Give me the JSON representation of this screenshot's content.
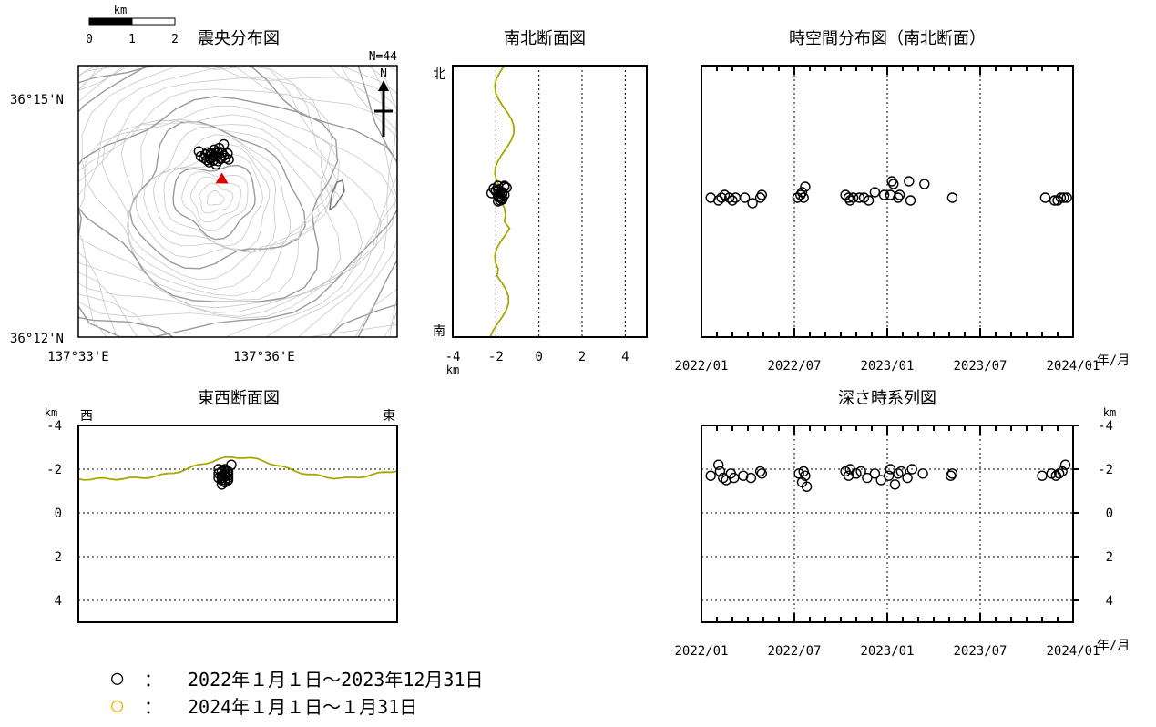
{
  "chart_data": [
    {
      "type": "scatter",
      "panel": "epicenter-map",
      "title": "震央分布図",
      "count_label": "N=44",
      "north_label": "N",
      "scale_bar": {
        "unit": "km",
        "ticks": [
          "0",
          "1",
          "2"
        ]
      },
      "lat_ticks": [
        "36°15'N",
        "36°12'N"
      ],
      "lon_ticks": [
        "137°33'E",
        "137°36'E"
      ],
      "xlim_deg_lon": [
        137.55,
        137.6333
      ],
      "ylim_deg_lat": [
        36.2,
        36.25
      ],
      "volcano_marker": {
        "lon": 137.5875,
        "lat": 36.2293,
        "color": "#e00000"
      },
      "points_lonlat": [
        [
          137.5815,
          36.2342
        ],
        [
          137.5832,
          36.2336
        ],
        [
          137.585,
          36.2331
        ],
        [
          137.586,
          36.2338
        ],
        [
          137.587,
          36.233
        ],
        [
          137.588,
          36.2334
        ],
        [
          137.5845,
          36.2328
        ],
        [
          137.5838,
          36.234
        ],
        [
          137.5865,
          36.2324
        ],
        [
          137.5855,
          36.2345
        ],
        [
          137.5875,
          36.234
        ],
        [
          137.5828,
          36.233
        ],
        [
          137.5842,
          36.2322
        ],
        [
          137.5868,
          36.2348
        ],
        [
          137.589,
          36.2338
        ],
        [
          137.588,
          36.2355
        ],
        [
          137.586,
          36.2318
        ],
        [
          137.5848,
          36.2336
        ],
        [
          137.5872,
          36.2328
        ],
        [
          137.5836,
          36.2326
        ],
        [
          137.5858,
          36.2333
        ],
        [
          137.5864,
          36.2341
        ],
        [
          137.5885,
          36.233
        ],
        [
          137.5852,
          36.2325
        ],
        [
          137.5846,
          36.2339
        ],
        [
          137.5893,
          36.2327
        ],
        [
          137.582,
          36.2333
        ]
      ]
    },
    {
      "type": "scatter",
      "panel": "north-south-section",
      "title": "南北断面図",
      "north_label": "北",
      "south_label": "南",
      "x_ticks": [
        "-4",
        "-2",
        "0",
        "2",
        "4"
      ],
      "x_unit": "km",
      "xlim": [
        -4,
        5
      ],
      "points_depth": [
        -1.9,
        -1.8,
        -1.7,
        -2.1,
        -1.6,
        -1.9,
        -2.0,
        -1.8,
        -1.5,
        -1.7,
        -1.8,
        -2.0,
        -1.9,
        -1.6,
        -2.2,
        -1.7,
        -1.9,
        -1.8,
        -1.6,
        -1.7
      ]
    },
    {
      "type": "scatter",
      "panel": "space-time-ns",
      "title": "時空間分布図（南北断面）",
      "x_ticks": [
        "2022/01",
        "2022/07",
        "2023/01",
        "2023/07",
        "2024/01"
      ],
      "x_unit": "年/月",
      "xlim_months": [
        0,
        24
      ],
      "points": [
        [
          0.6,
          0
        ],
        [
          1.1,
          -1
        ],
        [
          1.3,
          0
        ],
        [
          1.5,
          1
        ],
        [
          1.8,
          0
        ],
        [
          2.0,
          -1
        ],
        [
          2.2,
          0
        ],
        [
          2.8,
          0
        ],
        [
          3.3,
          -2
        ],
        [
          3.8,
          0
        ],
        [
          3.9,
          1
        ],
        [
          6.2,
          0
        ],
        [
          6.4,
          1
        ],
        [
          6.5,
          2
        ],
        [
          6.6,
          0
        ],
        [
          6.7,
          4
        ],
        [
          9.3,
          1
        ],
        [
          9.5,
          0
        ],
        [
          9.6,
          -1
        ],
        [
          9.8,
          0
        ],
        [
          10.2,
          0
        ],
        [
          10.5,
          0
        ],
        [
          10.8,
          -1
        ],
        [
          11.2,
          2
        ],
        [
          11.8,
          1
        ],
        [
          12.2,
          1
        ],
        [
          12.3,
          6
        ],
        [
          12.4,
          5
        ],
        [
          12.7,
          0
        ],
        [
          12.8,
          1
        ],
        [
          13.4,
          6
        ],
        [
          13.5,
          -1
        ],
        [
          14.4,
          5
        ],
        [
          16.2,
          0
        ],
        [
          22.2,
          0
        ],
        [
          22.8,
          -1
        ],
        [
          23.0,
          -1
        ],
        [
          23.2,
          0
        ],
        [
          23.4,
          0
        ],
        [
          23.6,
          0
        ]
      ]
    },
    {
      "type": "scatter",
      "panel": "east-west-section",
      "title": "東西断面図",
      "west_label": "西",
      "east_label": "東",
      "y_unit": "km",
      "y_ticks": [
        "-4",
        "-2",
        "0",
        "2",
        "4"
      ],
      "ylim": [
        -4,
        5
      ],
      "points_xdepth": [
        [
          0.44,
          -1.8
        ],
        [
          0.45,
          -1.6
        ],
        [
          0.46,
          -2.0
        ],
        [
          0.47,
          -1.7
        ],
        [
          0.45,
          -1.9
        ],
        [
          0.46,
          -1.5
        ],
        [
          0.47,
          -1.8
        ],
        [
          0.44,
          -1.6
        ],
        [
          0.48,
          -2.2
        ],
        [
          0.45,
          -1.7
        ],
        [
          0.46,
          -1.4
        ],
        [
          0.47,
          -1.9
        ],
        [
          0.45,
          -1.5
        ],
        [
          0.46,
          -1.8
        ],
        [
          0.44,
          -2.0
        ],
        [
          0.47,
          -1.6
        ],
        [
          0.46,
          -1.7
        ],
        [
          0.45,
          -1.3
        ],
        [
          0.47,
          -1.5
        ],
        [
          0.46,
          -1.9
        ]
      ]
    },
    {
      "type": "scatter",
      "panel": "depth-time",
      "title": "深さ時系列図",
      "y_unit": "km",
      "y_ticks": [
        "-4",
        "-2",
        "0",
        "2",
        "4"
      ],
      "ylim": [
        -4,
        5
      ],
      "x_ticks": [
        "2022/01",
        "2022/07",
        "2023/01",
        "2023/07",
        "2024/01"
      ],
      "x_unit": "年/月",
      "xlim_months": [
        0,
        24
      ],
      "points": [
        [
          0.6,
          -1.7
        ],
        [
          1.1,
          -2.2
        ],
        [
          1.2,
          -1.9
        ],
        [
          1.4,
          -1.6
        ],
        [
          1.6,
          -1.5
        ],
        [
          1.9,
          -1.8
        ],
        [
          2.1,
          -1.6
        ],
        [
          2.7,
          -1.7
        ],
        [
          3.2,
          -1.6
        ],
        [
          3.8,
          -1.9
        ],
        [
          3.9,
          -1.8
        ],
        [
          6.3,
          -1.8
        ],
        [
          6.5,
          -1.4
        ],
        [
          6.6,
          -1.9
        ],
        [
          6.7,
          -1.7
        ],
        [
          6.8,
          -1.2
        ],
        [
          9.3,
          -1.9
        ],
        [
          9.5,
          -1.7
        ],
        [
          9.6,
          -2.0
        ],
        [
          10.0,
          -1.8
        ],
        [
          10.3,
          -1.9
        ],
        [
          10.7,
          -1.6
        ],
        [
          11.2,
          -1.8
        ],
        [
          11.6,
          -1.5
        ],
        [
          12.1,
          -1.7
        ],
        [
          12.2,
          -2.0
        ],
        [
          12.5,
          -1.3
        ],
        [
          12.7,
          -1.8
        ],
        [
          12.9,
          -1.9
        ],
        [
          13.3,
          -1.6
        ],
        [
          13.6,
          -2.0
        ],
        [
          14.3,
          -1.8
        ],
        [
          16.1,
          -1.7
        ],
        [
          16.2,
          -1.8
        ],
        [
          22.0,
          -1.7
        ],
        [
          22.6,
          -1.8
        ],
        [
          22.9,
          -1.7
        ],
        [
          23.1,
          -1.8
        ],
        [
          23.3,
          -1.9
        ],
        [
          23.5,
          -2.2
        ]
      ]
    }
  ],
  "legend": {
    "items": [
      {
        "symbol": "○",
        "color": "#000000",
        "sep": "：",
        "label": "2022年１月１日～2023年12月31日"
      },
      {
        "symbol": "○",
        "color": "#f0b400",
        "sep": "：",
        "label": "2024年１月１日～１月31日"
      }
    ]
  },
  "colors": {
    "topo": "#c8c8c8",
    "topo_dark": "#9a9a9a",
    "profile": "#a8a800",
    "marker": "#e00000"
  }
}
